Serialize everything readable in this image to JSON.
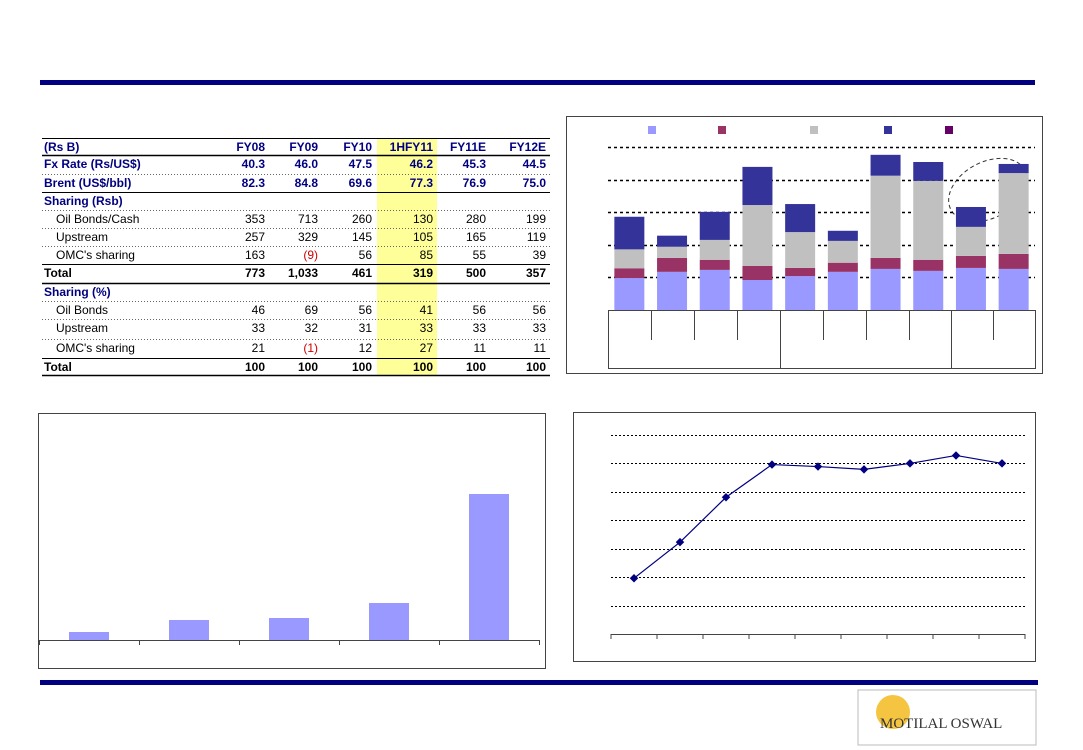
{
  "table": {
    "header": [
      "(Rs B)",
      "FY08",
      "FY09",
      "FY10",
      "1HFY11",
      "FY11E",
      "FY12E"
    ],
    "rows": [
      [
        "Fx Rate (Rs/US$)",
        "40.3",
        "46.0",
        "47.5",
        "46.2",
        "45.3",
        "44.5"
      ],
      [
        "Brent (US$/bbl)",
        "82.3",
        "84.8",
        "69.6",
        "77.3",
        "76.9",
        "75.0"
      ],
      [
        "Sharing (Rsb)"
      ],
      [
        "Oil Bonds/Cash",
        "353",
        "713",
        "260",
        "130",
        "280",
        "199"
      ],
      [
        "Upstream",
        "257",
        "329",
        "145",
        "105",
        "165",
        "119"
      ],
      [
        "OMC's sharing",
        "163",
        "(9)",
        "56",
        "85",
        "55",
        "39"
      ],
      [
        "Total",
        "773",
        "1,033",
        "461",
        "319",
        "500",
        "357"
      ],
      [
        "Sharing (%)"
      ],
      [
        "Oil Bonds",
        "46",
        "69",
        "56",
        "41",
        "56",
        "56"
      ],
      [
        "Upstream",
        "33",
        "32",
        "31",
        "33",
        "33",
        "33"
      ],
      [
        "OMC's sharing",
        "21",
        "(1)",
        "12",
        "27",
        "11",
        "11"
      ],
      [
        "Total",
        "100",
        "100",
        "100",
        "100",
        "100",
        "100"
      ]
    ]
  },
  "chart_data": [
    {
      "type": "stacked_bar",
      "categories": [
        null,
        null,
        null,
        null,
        null,
        null,
        null,
        null,
        null,
        null
      ],
      "series": [
        {
          "color": "#9999ff",
          "values": [
            0.98,
            1.17,
            1.23,
            0.92,
            1.04,
            1.17,
            1.26,
            1.2,
            1.29,
            1.26
          ]
        },
        {
          "color": "#993366",
          "values": [
            0.3,
            0.43,
            0.31,
            0.43,
            0.25,
            0.28,
            0.34,
            0.34,
            0.37,
            0.46
          ]
        },
        {
          "color": "#c0c0c0",
          "values": [
            0.58,
            0.34,
            0.61,
            1.87,
            1.1,
            0.67,
            2.52,
            2.42,
            0.89,
            2.48
          ]
        },
        {
          "color": "#333399",
          "values": [
            1.0,
            0.34,
            0.86,
            1.17,
            0.86,
            0.31,
            0.64,
            0.58,
            0.61,
            0.28
          ]
        },
        {
          "color": "#660066",
          "values": [
            0,
            0,
            0,
            0,
            0,
            0,
            0,
            0,
            0,
            0
          ]
        }
      ],
      "ylim": [
        0,
        5
      ],
      "yticks": [
        1,
        2,
        3,
        4,
        5
      ],
      "grid": true
    },
    {
      "type": "bar",
      "categories": [
        null,
        null,
        null,
        null,
        null
      ],
      "values": [
        8,
        20,
        22,
        37,
        146
      ],
      "color": "#9999ff",
      "ylim": [
        0,
        220
      ]
    },
    {
      "type": "line",
      "categories": [
        null,
        null,
        null,
        null,
        null,
        null,
        null,
        null,
        null
      ],
      "values": [
        1.96,
        3.23,
        4.81,
        5.96,
        5.89,
        5.79,
        6.0,
        6.28,
        6.0
      ],
      "color": "#000080",
      "ylim": [
        0,
        7
      ],
      "yticks": [
        1,
        2,
        3,
        4,
        5,
        6,
        7
      ],
      "grid": true
    }
  ],
  "logo": {
    "text": "MOTILAL OSWAL"
  }
}
